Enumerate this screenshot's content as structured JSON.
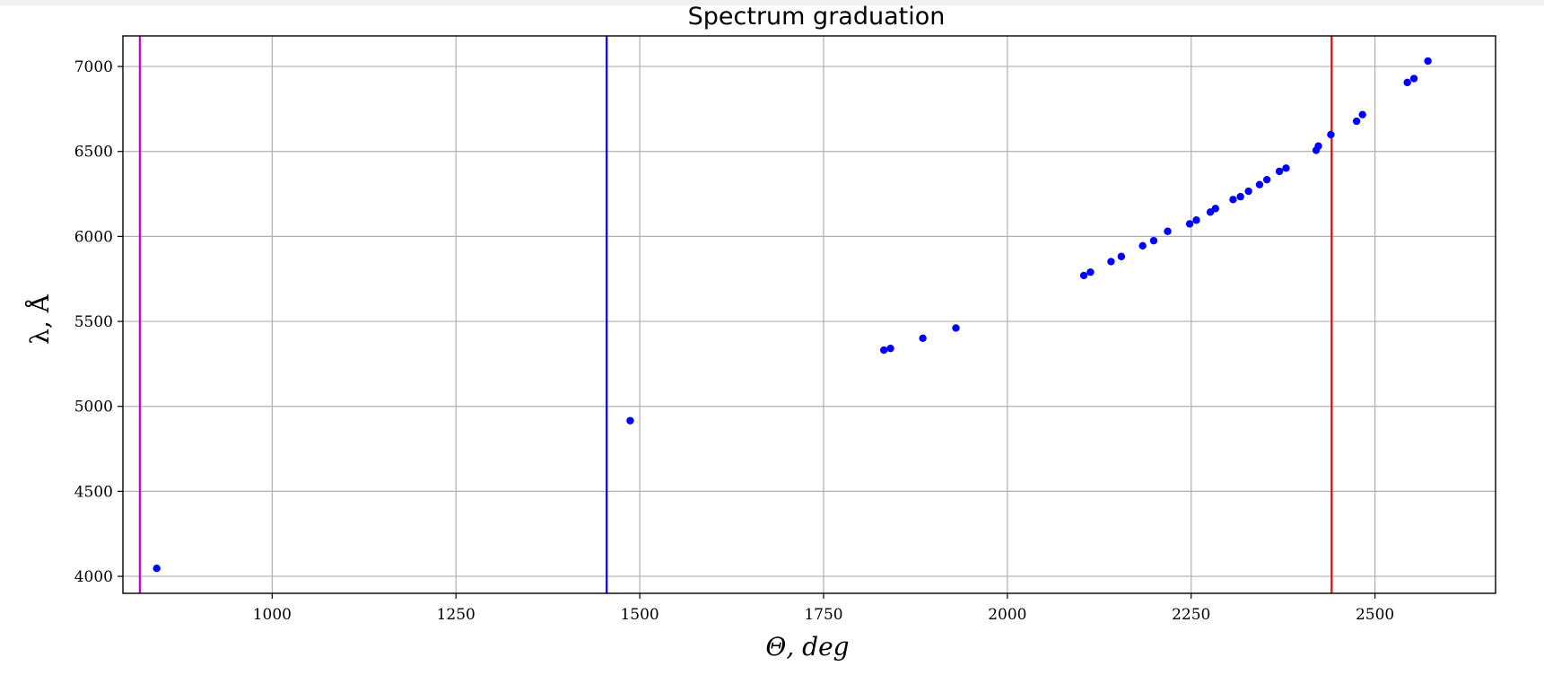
{
  "chart_data": {
    "type": "scatter",
    "title": "Spectrum graduation",
    "xlabel": "Θ, deg",
    "ylabel": "λ, Å",
    "xlim": [
      875,
      2665
    ],
    "ylim": [
      3900,
      7180
    ],
    "x_ticks": [
      1000,
      1250,
      1500,
      1750,
      2000,
      2250,
      2500
    ],
    "y_ticks": [
      4000,
      4500,
      5000,
      5500,
      6000,
      6500,
      7000
    ],
    "grid": true,
    "marker_color": "#0000ff",
    "points": [
      {
        "x": 843,
        "y": 4047
      },
      {
        "x": 1487,
        "y": 4916
      },
      {
        "x": 1832,
        "y": 5331
      },
      {
        "x": 1841,
        "y": 5341
      },
      {
        "x": 1885,
        "y": 5401
      },
      {
        "x": 1930,
        "y": 5461
      },
      {
        "x": 2104,
        "y": 5770
      },
      {
        "x": 2113,
        "y": 5790
      },
      {
        "x": 2141,
        "y": 5852
      },
      {
        "x": 2155,
        "y": 5882
      },
      {
        "x": 2184,
        "y": 5945
      },
      {
        "x": 2199,
        "y": 5975
      },
      {
        "x": 2218,
        "y": 6030
      },
      {
        "x": 2248,
        "y": 6074
      },
      {
        "x": 2257,
        "y": 6096
      },
      {
        "x": 2276,
        "y": 6143
      },
      {
        "x": 2283,
        "y": 6164
      },
      {
        "x": 2307,
        "y": 6217
      },
      {
        "x": 2317,
        "y": 6234
      },
      {
        "x": 2328,
        "y": 6266
      },
      {
        "x": 2343,
        "y": 6305
      },
      {
        "x": 2353,
        "y": 6334
      },
      {
        "x": 2370,
        "y": 6383
      },
      {
        "x": 2379,
        "y": 6402
      },
      {
        "x": 2420,
        "y": 6507
      },
      {
        "x": 2423,
        "y": 6532
      },
      {
        "x": 2440,
        "y": 6599
      },
      {
        "x": 2475,
        "y": 6678
      },
      {
        "x": 2483,
        "y": 6717
      },
      {
        "x": 2544,
        "y": 6906
      },
      {
        "x": 2553,
        "y": 6929
      },
      {
        "x": 2572,
        "y": 7032
      }
    ],
    "vlines": [
      {
        "x": 820,
        "color": "#cc00cc"
      },
      {
        "x": 1455,
        "color": "#0000ff"
      },
      {
        "x": 2441,
        "color": "#ff0000"
      }
    ]
  }
}
